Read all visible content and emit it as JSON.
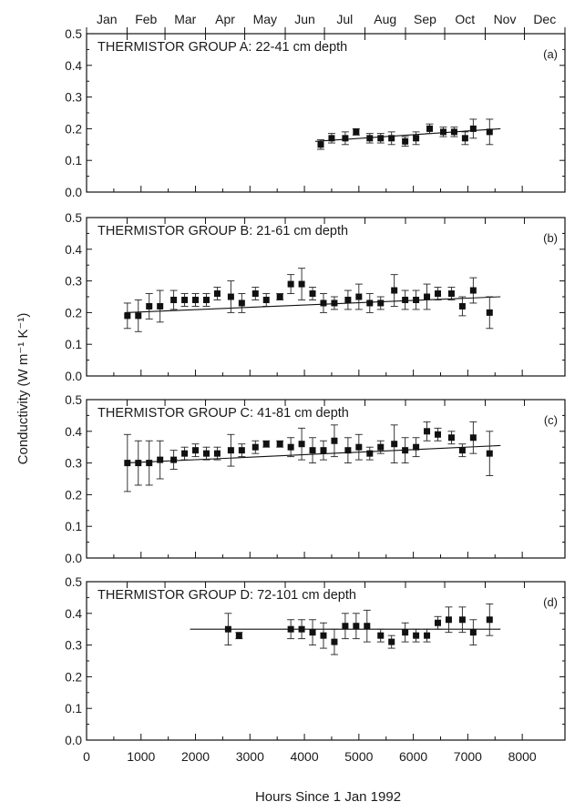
{
  "chart_data": {
    "type": "scatter",
    "xlabel": "Hours Since 1 Jan 1992",
    "ylabel": "Conductivity (W m⁻¹ K⁻¹)",
    "xlim": [
      0,
      8784
    ],
    "x_ticks": [
      0,
      1000,
      2000,
      3000,
      4000,
      5000,
      6000,
      7000,
      8000
    ],
    "x_tick_labels": [
      "0",
      "1000",
      "2000",
      "3000",
      "4000",
      "5000",
      "6000",
      "7000",
      "8000"
    ],
    "ylim": [
      0.0,
      0.5
    ],
    "y_tick_labels": [
      "0.0",
      "0.1",
      "0.2",
      "0.3",
      "0.4",
      "0.5"
    ],
    "months": [
      "Jan",
      "Feb",
      "Mar",
      "Apr",
      "May",
      "Jun",
      "Jul",
      "Aug",
      "Sep",
      "Oct",
      "Nov",
      "Dec"
    ],
    "panels": [
      {
        "title": "THERMISTOR GROUP A: 22-41 cm depth",
        "tag": "(a)",
        "fit": {
          "x": [
            4200,
            7600
          ],
          "y": [
            0.16,
            0.2
          ]
        },
        "points": [
          {
            "x": 4300,
            "y": 0.15,
            "err": 0.015
          },
          {
            "x": 4500,
            "y": 0.17,
            "err": 0.015
          },
          {
            "x": 4750,
            "y": 0.17,
            "err": 0.02
          },
          {
            "x": 4950,
            "y": 0.19,
            "err": 0.01
          },
          {
            "x": 5200,
            "y": 0.17,
            "err": 0.015
          },
          {
            "x": 5400,
            "y": 0.17,
            "err": 0.015
          },
          {
            "x": 5600,
            "y": 0.17,
            "err": 0.02
          },
          {
            "x": 5850,
            "y": 0.16,
            "err": 0.015
          },
          {
            "x": 6050,
            "y": 0.17,
            "err": 0.02
          },
          {
            "x": 6300,
            "y": 0.2,
            "err": 0.015
          },
          {
            "x": 6550,
            "y": 0.19,
            "err": 0.015
          },
          {
            "x": 6750,
            "y": 0.19,
            "err": 0.015
          },
          {
            "x": 6950,
            "y": 0.17,
            "err": 0.02
          },
          {
            "x": 7100,
            "y": 0.2,
            "err": 0.03
          },
          {
            "x": 7400,
            "y": 0.19,
            "err": 0.04
          }
        ]
      },
      {
        "title": "THERMISTOR GROUP B: 21-61 cm depth",
        "tag": "(b)",
        "fit": {
          "x": [
            700,
            7600
          ],
          "y": [
            0.2,
            0.25
          ]
        },
        "points": [
          {
            "x": 750,
            "y": 0.19,
            "err": 0.04
          },
          {
            "x": 950,
            "y": 0.19,
            "err": 0.05
          },
          {
            "x": 1150,
            "y": 0.22,
            "err": 0.04
          },
          {
            "x": 1350,
            "y": 0.22,
            "err": 0.05
          },
          {
            "x": 1600,
            "y": 0.24,
            "err": 0.03
          },
          {
            "x": 1800,
            "y": 0.24,
            "err": 0.02
          },
          {
            "x": 2000,
            "y": 0.24,
            "err": 0.02
          },
          {
            "x": 2200,
            "y": 0.24,
            "err": 0.02
          },
          {
            "x": 2400,
            "y": 0.26,
            "err": 0.02
          },
          {
            "x": 2650,
            "y": 0.25,
            "err": 0.05
          },
          {
            "x": 2850,
            "y": 0.23,
            "err": 0.03
          },
          {
            "x": 3100,
            "y": 0.26,
            "err": 0.02
          },
          {
            "x": 3300,
            "y": 0.24,
            "err": 0.02
          },
          {
            "x": 3550,
            "y": 0.25,
            "err": 0.01
          },
          {
            "x": 3750,
            "y": 0.29,
            "err": 0.03
          },
          {
            "x": 3950,
            "y": 0.29,
            "err": 0.05
          },
          {
            "x": 4150,
            "y": 0.26,
            "err": 0.02
          },
          {
            "x": 4350,
            "y": 0.23,
            "err": 0.03
          },
          {
            "x": 4550,
            "y": 0.23,
            "err": 0.02
          },
          {
            "x": 4800,
            "y": 0.24,
            "err": 0.03
          },
          {
            "x": 5000,
            "y": 0.25,
            "err": 0.04
          },
          {
            "x": 5200,
            "y": 0.23,
            "err": 0.03
          },
          {
            "x": 5400,
            "y": 0.23,
            "err": 0.02
          },
          {
            "x": 5650,
            "y": 0.27,
            "err": 0.05
          },
          {
            "x": 5850,
            "y": 0.24,
            "err": 0.03
          },
          {
            "x": 6050,
            "y": 0.24,
            "err": 0.03
          },
          {
            "x": 6250,
            "y": 0.25,
            "err": 0.04
          },
          {
            "x": 6450,
            "y": 0.26,
            "err": 0.02
          },
          {
            "x": 6700,
            "y": 0.26,
            "err": 0.02
          },
          {
            "x": 6900,
            "y": 0.22,
            "err": 0.03
          },
          {
            "x": 7100,
            "y": 0.27,
            "err": 0.04
          },
          {
            "x": 7400,
            "y": 0.2,
            "err": 0.05
          }
        ]
      },
      {
        "title": "THERMISTOR GROUP C: 41-81 cm depth",
        "tag": "(c)",
        "fit": {
          "x": [
            700,
            7600
          ],
          "y": [
            0.3,
            0.355
          ]
        },
        "points": [
          {
            "x": 750,
            "y": 0.3,
            "err": 0.09
          },
          {
            "x": 950,
            "y": 0.3,
            "err": 0.07
          },
          {
            "x": 1150,
            "y": 0.3,
            "err": 0.07
          },
          {
            "x": 1350,
            "y": 0.31,
            "err": 0.06
          },
          {
            "x": 1600,
            "y": 0.31,
            "err": 0.03
          },
          {
            "x": 1800,
            "y": 0.33,
            "err": 0.02
          },
          {
            "x": 2000,
            "y": 0.34,
            "err": 0.02
          },
          {
            "x": 2200,
            "y": 0.33,
            "err": 0.02
          },
          {
            "x": 2400,
            "y": 0.33,
            "err": 0.02
          },
          {
            "x": 2650,
            "y": 0.34,
            "err": 0.05
          },
          {
            "x": 2850,
            "y": 0.34,
            "err": 0.02
          },
          {
            "x": 3100,
            "y": 0.35,
            "err": 0.02
          },
          {
            "x": 3300,
            "y": 0.36,
            "err": 0.01
          },
          {
            "x": 3550,
            "y": 0.36,
            "err": 0.01
          },
          {
            "x": 3750,
            "y": 0.35,
            "err": 0.03
          },
          {
            "x": 3950,
            "y": 0.36,
            "err": 0.05
          },
          {
            "x": 4150,
            "y": 0.34,
            "err": 0.04
          },
          {
            "x": 4350,
            "y": 0.34,
            "err": 0.03
          },
          {
            "x": 4550,
            "y": 0.37,
            "err": 0.05
          },
          {
            "x": 4800,
            "y": 0.34,
            "err": 0.04
          },
          {
            "x": 5000,
            "y": 0.35,
            "err": 0.04
          },
          {
            "x": 5200,
            "y": 0.33,
            "err": 0.02
          },
          {
            "x": 5400,
            "y": 0.35,
            "err": 0.02
          },
          {
            "x": 5650,
            "y": 0.36,
            "err": 0.06
          },
          {
            "x": 5850,
            "y": 0.34,
            "err": 0.04
          },
          {
            "x": 6050,
            "y": 0.35,
            "err": 0.03
          },
          {
            "x": 6250,
            "y": 0.4,
            "err": 0.03
          },
          {
            "x": 6450,
            "y": 0.39,
            "err": 0.02
          },
          {
            "x": 6700,
            "y": 0.38,
            "err": 0.02
          },
          {
            "x": 6900,
            "y": 0.34,
            "err": 0.02
          },
          {
            "x": 7100,
            "y": 0.38,
            "err": 0.05
          },
          {
            "x": 7400,
            "y": 0.33,
            "err": 0.07
          }
        ]
      },
      {
        "title": "THERMISTOR GROUP D: 72-101 cm depth",
        "tag": "(d)",
        "fit": {
          "x": [
            1900,
            7600
          ],
          "y": [
            0.35,
            0.35
          ]
        },
        "points": [
          {
            "x": 2600,
            "y": 0.35,
            "err": 0.05
          },
          {
            "x": 2800,
            "y": 0.33,
            "err": 0.01
          },
          {
            "x": 3750,
            "y": 0.35,
            "err": 0.03
          },
          {
            "x": 3950,
            "y": 0.35,
            "err": 0.03
          },
          {
            "x": 4150,
            "y": 0.34,
            "err": 0.04
          },
          {
            "x": 4350,
            "y": 0.33,
            "err": 0.04
          },
          {
            "x": 4550,
            "y": 0.31,
            "err": 0.04
          },
          {
            "x": 4750,
            "y": 0.36,
            "err": 0.04
          },
          {
            "x": 4950,
            "y": 0.36,
            "err": 0.04
          },
          {
            "x": 5150,
            "y": 0.36,
            "err": 0.05
          },
          {
            "x": 5400,
            "y": 0.33,
            "err": 0.02
          },
          {
            "x": 5600,
            "y": 0.31,
            "err": 0.02
          },
          {
            "x": 5850,
            "y": 0.34,
            "err": 0.03
          },
          {
            "x": 6050,
            "y": 0.33,
            "err": 0.02
          },
          {
            "x": 6250,
            "y": 0.33,
            "err": 0.02
          },
          {
            "x": 6450,
            "y": 0.37,
            "err": 0.02
          },
          {
            "x": 6650,
            "y": 0.38,
            "err": 0.04
          },
          {
            "x": 6900,
            "y": 0.38,
            "err": 0.04
          },
          {
            "x": 7100,
            "y": 0.34,
            "err": 0.04
          },
          {
            "x": 7400,
            "y": 0.38,
            "err": 0.05
          }
        ]
      }
    ]
  }
}
